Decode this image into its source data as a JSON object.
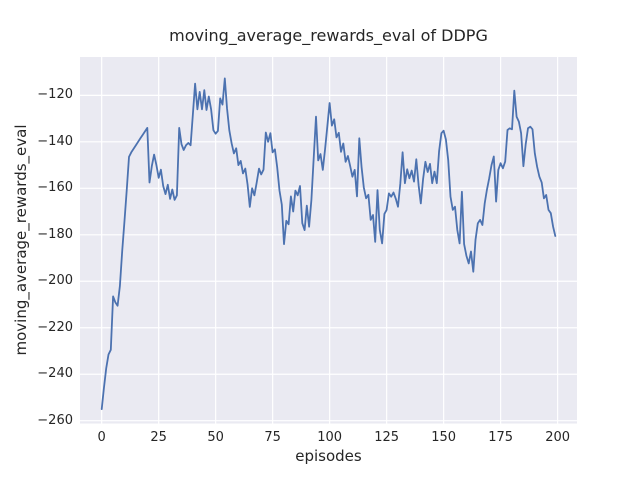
{
  "figure": {
    "title": "moving_average_rewards_eval of DDPG",
    "xlabel": "episodes",
    "ylabel": "moving_average_rewards_eval"
  },
  "axes": {
    "x_ticks": {
      "values": [
        0,
        25,
        50,
        75,
        100,
        125,
        150,
        175,
        200
      ],
      "labels": [
        "0",
        "25",
        "50",
        "75",
        "100",
        "125",
        "150",
        "175",
        "200"
      ]
    },
    "y_ticks": {
      "values": [
        -120,
        -140,
        -160,
        -180,
        -200,
        -220,
        -240,
        -260
      ],
      "labels": [
        "−120",
        "−140",
        "−160",
        "−180",
        "−200",
        "−220",
        "−240",
        "−260"
      ]
    }
  },
  "colors": {
    "line": "#4c72b0",
    "plot_background": "#eaeaf2",
    "grid": "#ffffff",
    "text": "#262626",
    "figure_background": "#ffffff"
  },
  "chart_data": {
    "type": "line",
    "title": "moving_average_rewards_eval of DDPG",
    "xlabel": "episodes",
    "ylabel": "moving_average_rewards_eval",
    "xlim": [
      -9.5,
      208.5
    ],
    "ylim": [
      -261.2,
      -103.5
    ],
    "grid": true,
    "legend": null,
    "series": [
      {
        "name": "moving_average_rewards_eval",
        "color": "#4c72b0",
        "x_start": 0,
        "x_step": 1,
        "values": [
          -255,
          -246,
          -237.5,
          -231.5,
          -229.5,
          -206.5,
          -209,
          -210.5,
          -202,
          -187,
          -174,
          -161,
          -146.5,
          -144.5,
          -143,
          -141.5,
          -140,
          -138.5,
          -137,
          -135.5,
          -134,
          -157.5,
          -150.5,
          -145.5,
          -150,
          -155.5,
          -152,
          -159,
          -162.5,
          -158.5,
          -164.5,
          -160.5,
          -165,
          -163,
          -134,
          -141,
          -143.5,
          -141.5,
          -140.5,
          -141.5,
          -128,
          -115,
          -126,
          -118.5,
          -126,
          -117.8,
          -126.3,
          -120.5,
          -126,
          -135,
          -136.5,
          -135.3,
          -121.3,
          -124,
          -112.7,
          -125.5,
          -135,
          -140.6,
          -145,
          -142.8,
          -150,
          -148.2,
          -153.6,
          -151.5,
          -158.5,
          -168,
          -160,
          -163,
          -157.5,
          -151.5,
          -154,
          -152,
          -136,
          -140,
          -136.3,
          -144.5,
          -143.2,
          -151,
          -161,
          -167,
          -184,
          -174,
          -175.5,
          -163.5,
          -170,
          -161,
          -163,
          -159,
          -175,
          -178,
          -167.5,
          -176.5,
          -165,
          -147,
          -129.2,
          -148,
          -145.3,
          -152.1,
          -143,
          -133,
          -123.3,
          -133,
          -130.3,
          -138.1,
          -136.1,
          -144.3,
          -140.7,
          -148.6,
          -146.1,
          -150.5,
          -155,
          -152.1,
          -163.5,
          -138.5,
          -151,
          -159.6,
          -164.3,
          -162.8,
          -173.6,
          -171.5,
          -183,
          -160.8,
          -177.9,
          -183.7,
          -171,
          -169.3,
          -162.2,
          -163.6,
          -161.8,
          -164.5,
          -167.9,
          -158,
          -144.5,
          -157.8,
          -151.8,
          -155.7,
          -152.4,
          -157.1,
          -147.5,
          -158.6,
          -166.5,
          -156,
          -148.6,
          -153,
          -149.5,
          -157.8,
          -152.8,
          -157.8,
          -144,
          -136.3,
          -135.2,
          -139,
          -147.8,
          -163.6,
          -169.3,
          -167.9,
          -177.9,
          -183.7,
          -161.5,
          -184,
          -189,
          -192.3,
          -187.2,
          -195.9,
          -182.2,
          -175.1,
          -173.6,
          -175.8,
          -166.5,
          -160.7,
          -155.7,
          -150,
          -146.3,
          -165.7,
          -152.1,
          -149.2,
          -151.4,
          -148.5,
          -134.9,
          -134.2,
          -134.6,
          -118,
          -129.2,
          -131.4,
          -136.3,
          -150.5,
          -141,
          -134.2,
          -133.5,
          -134.6,
          -144.9,
          -150.7,
          -155,
          -157.5,
          -164.3,
          -162.9,
          -169.3,
          -170.7,
          -176.5,
          -180.5
        ]
      }
    ]
  }
}
